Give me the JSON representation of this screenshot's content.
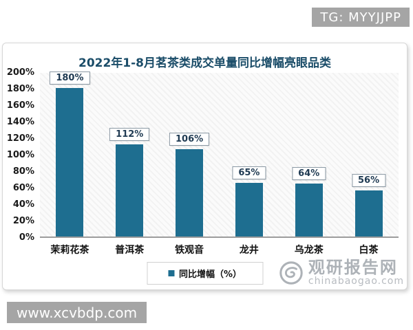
{
  "overlays": {
    "top_banner": "TG: MYYJJPP",
    "bottom_banner": "www.xcvbdp.com"
  },
  "watermark": {
    "name": "观研报告网",
    "domain": "chinabaogao.com"
  },
  "legend": {
    "label": "同比增幅（%）"
  },
  "colors": {
    "bar": "#1E6E90",
    "title": "#1A4C68",
    "banner_bg": "#A5A5A5",
    "watermark": "#A9AEB4"
  },
  "chart_data": {
    "type": "bar",
    "title": "2022年1-8月茗茶类成交单量同比增幅亮眼品类",
    "categories": [
      "茉莉花茶",
      "普洱茶",
      "铁观音",
      "龙井",
      "乌龙茶",
      "白茶"
    ],
    "values": [
      180,
      112,
      106,
      65,
      64,
      56
    ],
    "data_labels": [
      "180%",
      "112%",
      "106%",
      "65%",
      "64%",
      "56%"
    ],
    "xlabel": "",
    "ylabel": "",
    "ylim": [
      0,
      200
    ],
    "ytick_step": 20,
    "yticks": [
      "0%",
      "20%",
      "40%",
      "60%",
      "80%",
      "100%",
      "120%",
      "140%",
      "160%",
      "180%",
      "200%"
    ],
    "grid": false,
    "legend": [
      "同比增幅（%）"
    ],
    "legend_position": "bottom",
    "bar_color": "#1E6E90"
  }
}
